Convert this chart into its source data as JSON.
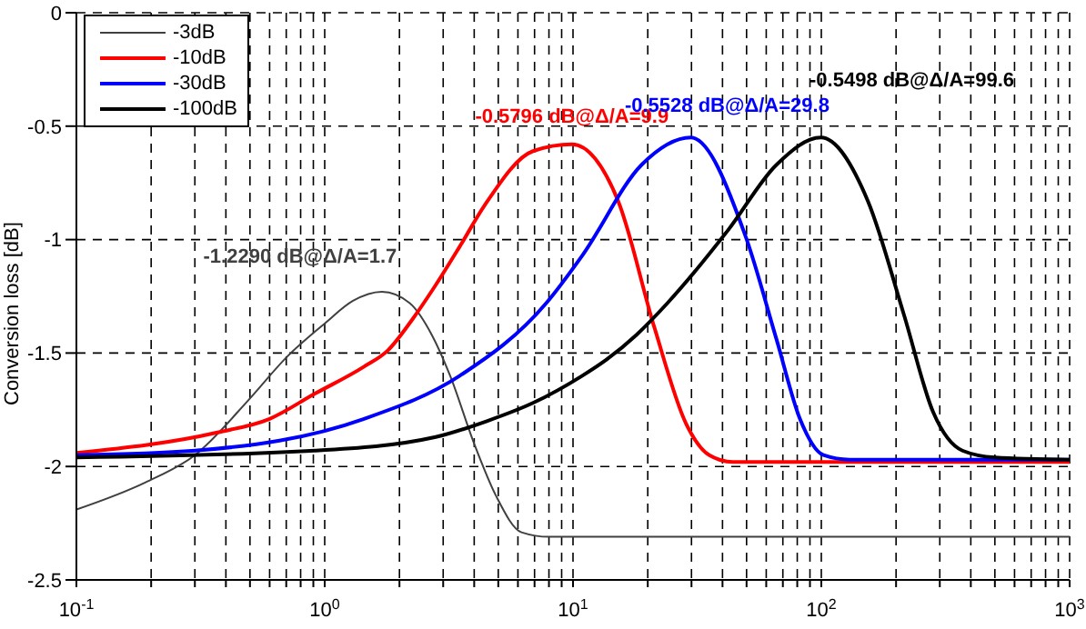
{
  "chart_data": {
    "type": "line",
    "ylabel": "Conversion loss [dB]",
    "log": "x",
    "grid": true,
    "legend": "top left",
    "marker": "none",
    "line_style": "solid",
    "xlim": [
      0.1,
      1000
    ],
    "ylim": [
      -2.5,
      0
    ],
    "xticks": [
      {
        "value": 0.1,
        "label": "10$^{-1}$"
      },
      {
        "value": 0.2,
        "label": null
      },
      {
        "value": 0.3,
        "label": null
      },
      {
        "value": 0.4,
        "label": null
      },
      {
        "value": 0.5,
        "label": null
      },
      {
        "value": 0.6,
        "label": null
      },
      {
        "value": 0.7,
        "label": null
      },
      {
        "value": 0.8,
        "label": null
      },
      {
        "value": 0.9,
        "label": null
      },
      {
        "value": 1,
        "label": "10$^{0}$"
      },
      {
        "value": 2,
        "label": null
      },
      {
        "value": 3,
        "label": null
      },
      {
        "value": 4,
        "label": null
      },
      {
        "value": 5,
        "label": null
      },
      {
        "value": 6,
        "label": null
      },
      {
        "value": 7,
        "label": null
      },
      {
        "value": 8,
        "label": null
      },
      {
        "value": 9,
        "label": null
      },
      {
        "value": 10,
        "label": "10$^{1}$"
      },
      {
        "value": 20,
        "label": null
      },
      {
        "value": 30,
        "label": null
      },
      {
        "value": 40,
        "label": null
      },
      {
        "value": 50,
        "label": null
      },
      {
        "value": 60,
        "label": null
      },
      {
        "value": 70,
        "label": null
      },
      {
        "value": 80,
        "label": null
      },
      {
        "value": 90,
        "label": null
      },
      {
        "value": 100,
        "label": "10$^{2}$"
      },
      {
        "value": 200,
        "label": null
      },
      {
        "value": 300,
        "label": null
      },
      {
        "value": 400,
        "label": null
      },
      {
        "value": 500,
        "label": null
      },
      {
        "value": 600,
        "label": null
      },
      {
        "value": 700,
        "label": null
      },
      {
        "value": 800,
        "label": null
      },
      {
        "value": 900,
        "label": null
      },
      {
        "value": 1000,
        "label": "10$^{3}$"
      }
    ],
    "yticks": [
      -2.5,
      -2,
      -1.5,
      -1,
      -0.5,
      0
    ],
    "series": [
      {
        "name": "-3dB",
        "color": "#404040",
        "x": [
          0.1,
          0.19,
          0.3,
          0.5,
          0.7,
          1,
          1.3,
          1.7,
          2.2,
          2.7,
          3.2,
          4,
          4.9,
          6.2,
          8,
          10,
          1000
        ],
        "values": [
          -2.19,
          -2.07,
          -1.95,
          -1.7,
          -1.52,
          -1.37,
          -1.27,
          -1.23,
          -1.28,
          -1.42,
          -1.6,
          -1.9,
          -2.13,
          -2.29,
          -2.31,
          -2.31,
          -2.31
        ]
      },
      {
        "name": "-10dB",
        "color": "#ff0000",
        "x": [
          0.1,
          0.37,
          0.6,
          0.91,
          1.44,
          1.79,
          2.26,
          2.8,
          3.5,
          4.4,
          6.9,
          9.9,
          15.2,
          21.3,
          28.5,
          35.4,
          44,
          1000
        ],
        "values": [
          -1.94,
          -1.85,
          -1.79,
          -1.68,
          -1.56,
          -1.49,
          -1.35,
          -1.2,
          -1.03,
          -0.85,
          -0.61,
          -0.58,
          -0.83,
          -1.39,
          -1.81,
          -1.95,
          -1.98,
          -1.98
        ]
      },
      {
        "name": "-30dB",
        "color": "#0000ff",
        "x": [
          0.1,
          0.3,
          1.44,
          3.5,
          7.8,
          10.9,
          18.9,
          29.8,
          49.7,
          66,
          82,
          102,
          130,
          1000
        ],
        "values": [
          -1.95,
          -1.93,
          -1.79,
          -1.6,
          -1.28,
          -1.07,
          -0.67,
          -0.55,
          -0.99,
          -1.44,
          -1.79,
          -1.95,
          -1.97,
          -1.97
        ]
      },
      {
        "name": "-100dB",
        "color": "#000000",
        "x": [
          0.1,
          0.91,
          2.8,
          4.5,
          6.9,
          10.9,
          13.6,
          18,
          24,
          42,
          66,
          99.6,
          154,
          215,
          282,
          370,
          500,
          1000
        ],
        "values": [
          -1.96,
          -1.93,
          -1.87,
          -1.8,
          -1.72,
          -1.6,
          -1.53,
          -1.42,
          -1.28,
          -0.96,
          -0.67,
          -0.55,
          -0.83,
          -1.33,
          -1.76,
          -1.93,
          -1.96,
          -1.97
        ]
      }
    ],
    "annotations": [
      {
        "text": "-1.2290 dB@Δ/A=1.7",
        "x": 1.7,
        "y": -1.23
      },
      {
        "text": "-0.5796 dB@Δ/A=9.9",
        "x": 9.9,
        "y": -0.58
      },
      {
        "text": "-0.5528 dB@Δ/A=29.8",
        "x": 29.8,
        "y": -0.55
      },
      {
        "text": "-0.5498 dB@Δ/A=99.6",
        "x": 99.6,
        "y": -0.55
      }
    ]
  }
}
